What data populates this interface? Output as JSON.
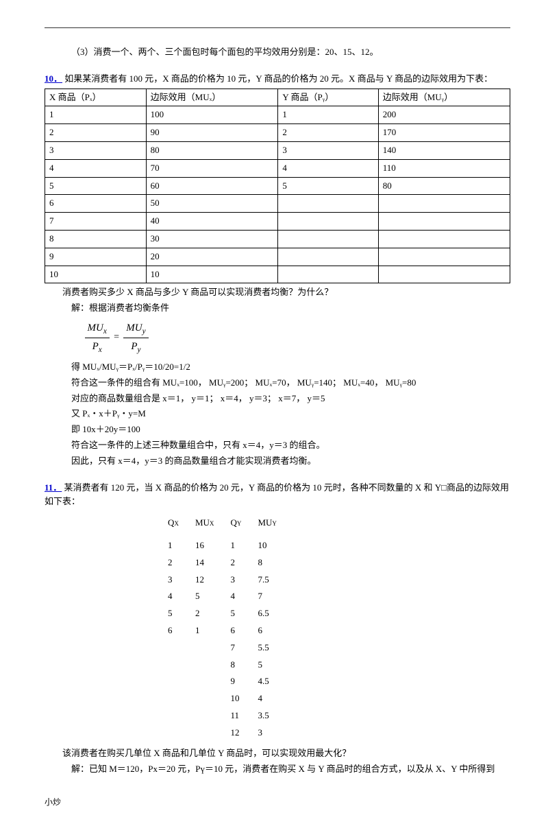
{
  "line3": "（3）消费一个、两个、三个面包时每个面包的平均效用分别是：20、15、12。",
  "q10": {
    "num": "10．",
    "text": "如果某消费者有 100 元，X 商品的价格为 10 元，Y 商品的价格为 20 元。X 商品与 Y 商品的边际效用为下表：",
    "headers": [
      "X 商品（Pₓ）",
      "边际效用（MUₓ）",
      "Y 商品（Pᵧ）",
      "边际效用（MUᵧ）"
    ],
    "rows": [
      [
        "1",
        "100",
        "1",
        "200"
      ],
      [
        "2",
        "90",
        "2",
        "170"
      ],
      [
        "3",
        "80",
        "3",
        "140"
      ],
      [
        "4",
        "70",
        "4",
        "110"
      ],
      [
        "5",
        "60",
        "5",
        "80"
      ],
      [
        "6",
        "50",
        "",
        ""
      ],
      [
        "7",
        "40",
        "",
        ""
      ],
      [
        "8",
        "30",
        "",
        ""
      ],
      [
        "9",
        "20",
        "",
        ""
      ],
      [
        "10",
        "10",
        "",
        ""
      ]
    ],
    "after": "消费者购买多少 X 商品与多少 Y 商品可以实现消费者均衡？为什么？",
    "sol_intro": "解：根据消费者均衡条件",
    "s1": "得  MUₓ/MUᵧ＝Pₓ/Pᵧ＝10/20=1/2",
    "s2": "符合这一条件的组合有 MUₓ=100，  MUᵧ=200；        MUₓ=70，  MUᵧ=140；        MUₓ=40，  MUᵧ=80",
    "s3": "对应的商品数量组合是  x＝1，  y＝1；        x＝4，  y＝3；        x＝7，  y＝5",
    "s4": "  又    Pₓ・x＋Pᵧ・y=M",
    "s5": "  即    10x＋20y＝100",
    "s6": "符合这一条件的上述三种数量组合中，只有 x＝4，y＝3 的组合。",
    "s7": "因此，只有 x＝4，y＝3 的商品数量组合才能实现消费者均衡。"
  },
  "q11": {
    "num": "11．",
    "text": "某消费者有 120 元，当 X 商品的价格为 20 元，Y 商品的价格为 10 元时，各种不同数量的 X 和 Y□商品的边际效用如下表：",
    "rows": [
      [
        "1",
        "16",
        "1",
        "10"
      ],
      [
        "2",
        "14",
        "2",
        "8"
      ],
      [
        "3",
        "12",
        "3",
        "7.5"
      ],
      [
        "4",
        "5",
        "4",
        "7"
      ],
      [
        "5",
        "2",
        "5",
        "6.5"
      ],
      [
        "6",
        "1",
        "6",
        "6"
      ],
      [
        "",
        "",
        "7",
        "5.5"
      ],
      [
        "",
        "",
        "8",
        "5"
      ],
      [
        "",
        "",
        "9",
        "4.5"
      ],
      [
        "",
        "",
        "10",
        "4"
      ],
      [
        "",
        "",
        "11",
        "3.5"
      ],
      [
        "",
        "",
        "12",
        "3"
      ]
    ],
    "after": "该消费者在购买几单位 X 商品和几单位 Y 商品时，可以实现效用最大化？",
    "sol": "解：已知 M＝120，Pх＝20 元，Pү＝10 元，消费者在购买 X 与 Y 商品时的组合方式，以及从 X、Y 中所得到"
  },
  "footer": "小炒"
}
